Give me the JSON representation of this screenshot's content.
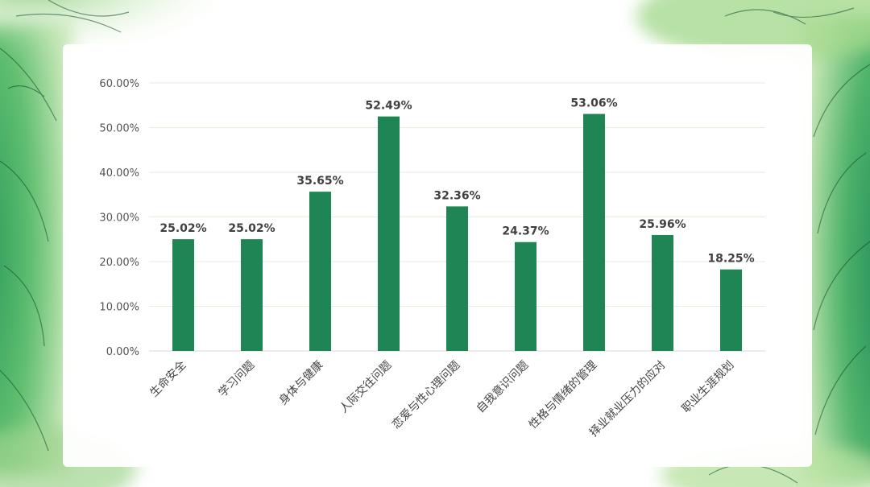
{
  "chart_data": {
    "type": "bar",
    "categories": [
      "生命安全",
      "学习问题",
      "身体与健康",
      "人际交往问题",
      "恋爱与性心理问题",
      "自我意识问题",
      "性格与情绪的管理",
      "择业就业压力的应对",
      "职业生涯规划"
    ],
    "values": [
      25.02,
      25.02,
      35.65,
      52.49,
      32.36,
      24.37,
      53.06,
      25.96,
      18.25
    ],
    "data_labels": [
      "25.02%",
      "25.02%",
      "35.65%",
      "52.49%",
      "32.36%",
      "24.37%",
      "53.06%",
      "25.96%",
      "18.25%"
    ],
    "y_ticks": [
      "0.00%",
      "10.00%",
      "20.00%",
      "30.00%",
      "40.00%",
      "50.00%",
      "60.00%"
    ],
    "ylim": [
      0,
      60
    ],
    "title": "",
    "xlabel": "",
    "ylabel": "",
    "grid": true,
    "bar_color": "#1f8555",
    "grid_color": "#e6eedc"
  }
}
